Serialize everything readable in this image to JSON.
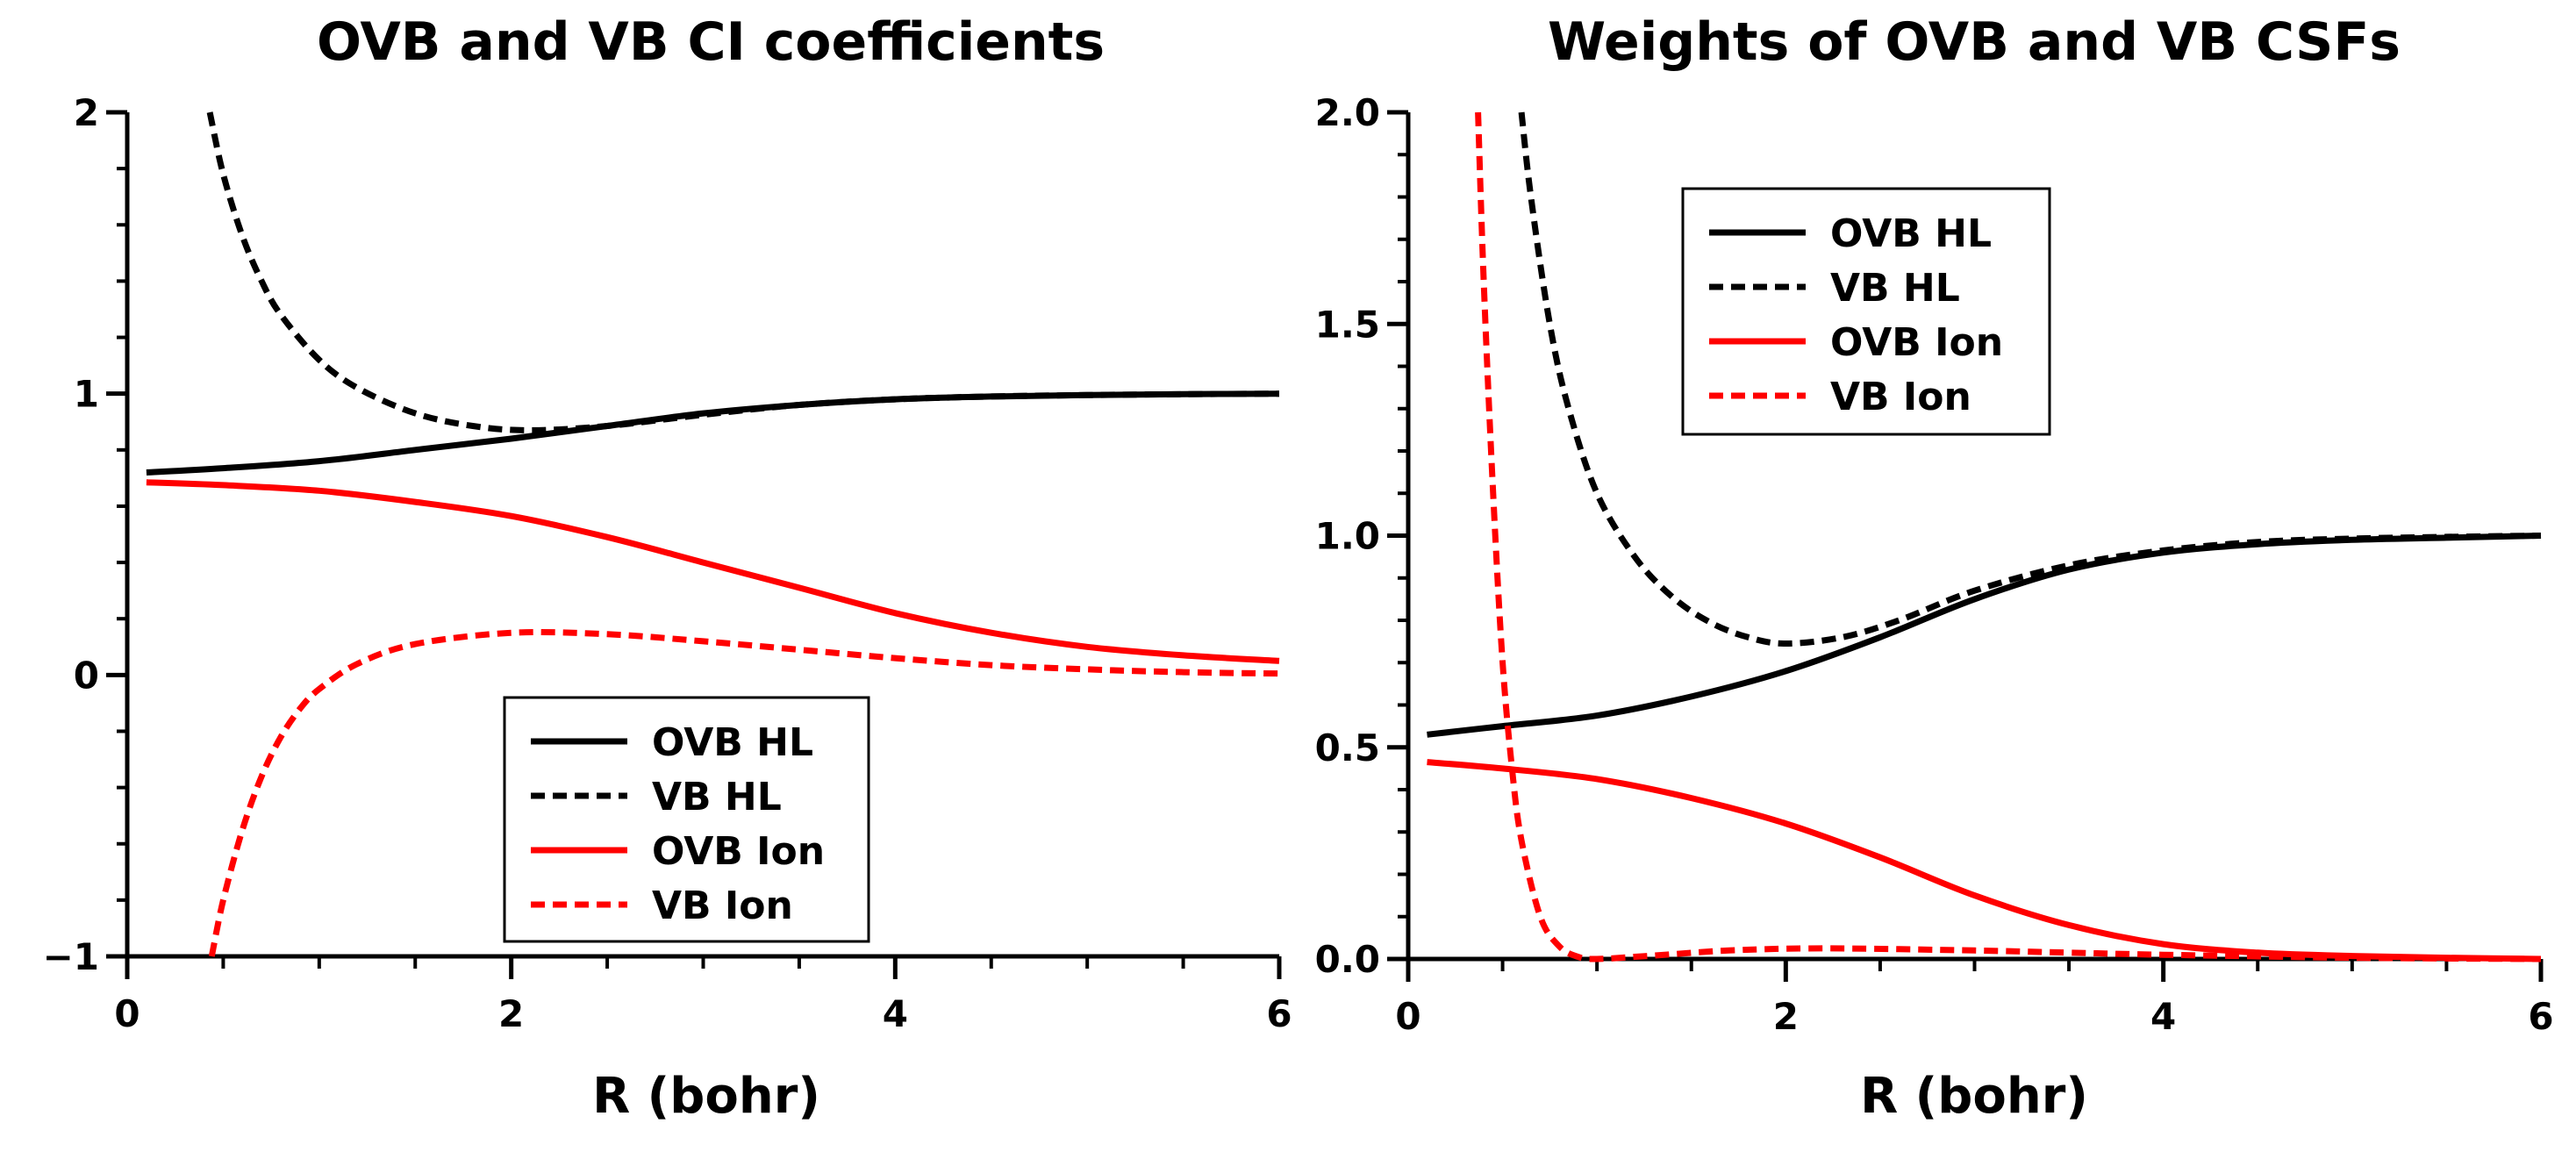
{
  "figure": {
    "background": "#ffffff"
  },
  "chart_data": [
    {
      "type": "line",
      "title": "OVB and VB CI coefficients",
      "xlabel": "R (bohr)",
      "ylabel": "",
      "xlim": [
        0,
        6
      ],
      "ylim": [
        -1,
        2
      ],
      "xticks": [
        0,
        2,
        4,
        6
      ],
      "xtick_labels": [
        "0",
        "2",
        "4",
        "6"
      ],
      "yticks": [
        -1,
        0,
        1,
        2
      ],
      "ytick_labels": [
        "−1",
        "0",
        "1",
        "2"
      ],
      "legend_position": "bottom-center",
      "series": [
        {
          "name": "OVB HL",
          "color": "#000000",
          "dash": "solid",
          "x": [
            0.1,
            0.5,
            1.0,
            1.5,
            2.0,
            2.5,
            3.0,
            3.5,
            4.0,
            4.5,
            5.0,
            5.5,
            6.0
          ],
          "y": [
            0.72,
            0.735,
            0.76,
            0.8,
            0.84,
            0.885,
            0.93,
            0.96,
            0.98,
            0.99,
            0.995,
            0.998,
            1.0
          ]
        },
        {
          "name": "VB HL",
          "color": "#000000",
          "dash": "dashed",
          "x": [
            0.43,
            0.5,
            0.6,
            0.7,
            0.8,
            1.0,
            1.2,
            1.5,
            1.8,
            2.1,
            2.5,
            3.0,
            3.5,
            4.0,
            4.5,
            5.0,
            5.5,
            6.0
          ],
          "y": [
            2.0,
            1.78,
            1.56,
            1.4,
            1.28,
            1.12,
            1.02,
            0.93,
            0.885,
            0.87,
            0.885,
            0.925,
            0.96,
            0.98,
            0.99,
            0.995,
            0.998,
            1.0
          ]
        },
        {
          "name": "OVB Ion",
          "color": "#ff0000",
          "dash": "solid",
          "x": [
            0.1,
            0.5,
            1.0,
            1.5,
            2.0,
            2.5,
            3.0,
            3.5,
            4.0,
            4.5,
            5.0,
            5.5,
            6.0
          ],
          "y": [
            0.685,
            0.675,
            0.655,
            0.615,
            0.565,
            0.49,
            0.4,
            0.31,
            0.22,
            0.15,
            0.1,
            0.07,
            0.05
          ]
        },
        {
          "name": "VB Ion",
          "color": "#ff0000",
          "dash": "dashed",
          "x": [
            0.44,
            0.5,
            0.6,
            0.7,
            0.8,
            0.9,
            1.0,
            1.2,
            1.5,
            2.0,
            2.5,
            3.0,
            3.5,
            4.0,
            4.5,
            5.0,
            5.5,
            6.0
          ],
          "y": [
            -1.0,
            -0.8,
            -0.55,
            -0.36,
            -0.22,
            -0.12,
            -0.05,
            0.04,
            0.11,
            0.15,
            0.145,
            0.12,
            0.09,
            0.06,
            0.035,
            0.02,
            0.01,
            0.005
          ]
        }
      ]
    },
    {
      "type": "line",
      "title": "Weights of OVB and VB CSFs",
      "xlabel": "R (bohr)",
      "ylabel": "",
      "xlim": [
        0,
        6
      ],
      "ylim": [
        0,
        2
      ],
      "xticks": [
        0,
        2,
        4,
        6
      ],
      "xtick_labels": [
        "0",
        "2",
        "4",
        "6"
      ],
      "yticks": [
        0,
        0.5,
        1.0,
        1.5,
        2.0
      ],
      "ytick_labels": [
        "0.0",
        "0.5",
        "1.0",
        "1.5",
        "2.0"
      ],
      "legend_position": "top-left",
      "series": [
        {
          "name": "OVB HL",
          "color": "#000000",
          "dash": "solid",
          "x": [
            0.1,
            0.5,
            1.0,
            1.5,
            2.0,
            2.5,
            3.0,
            3.5,
            4.0,
            4.5,
            5.0,
            5.5,
            6.0
          ],
          "y": [
            0.53,
            0.55,
            0.575,
            0.62,
            0.68,
            0.76,
            0.85,
            0.92,
            0.96,
            0.98,
            0.99,
            0.995,
            1.0
          ]
        },
        {
          "name": "VB HL",
          "color": "#000000",
          "dash": "dashed",
          "x": [
            0.6,
            0.65,
            0.75,
            0.85,
            1.0,
            1.2,
            1.4,
            1.6,
            1.8,
            2.0,
            2.3,
            2.6,
            3.0,
            3.5,
            4.0,
            4.5,
            5.0,
            5.5,
            6.0
          ],
          "y": [
            2.0,
            1.8,
            1.5,
            1.3,
            1.1,
            0.95,
            0.855,
            0.795,
            0.76,
            0.745,
            0.76,
            0.8,
            0.87,
            0.93,
            0.965,
            0.985,
            0.993,
            0.997,
            1.0
          ]
        },
        {
          "name": "OVB Ion",
          "color": "#ff0000",
          "dash": "solid",
          "x": [
            0.1,
            0.5,
            1.0,
            1.5,
            2.0,
            2.5,
            3.0,
            3.5,
            4.0,
            4.5,
            5.0,
            5.5,
            6.0
          ],
          "y": [
            0.465,
            0.45,
            0.425,
            0.38,
            0.32,
            0.24,
            0.15,
            0.08,
            0.035,
            0.015,
            0.007,
            0.003,
            0.0
          ]
        },
        {
          "name": "VB Ion",
          "color": "#ff0000",
          "dash": "dashed",
          "x": [
            0.37,
            0.4,
            0.45,
            0.5,
            0.55,
            0.6,
            0.7,
            0.8,
            0.9,
            1.0,
            1.3,
            1.7,
            2.2,
            3.0,
            3.5,
            4.0,
            5.0,
            6.0
          ],
          "y": [
            2.0,
            1.6,
            1.1,
            0.7,
            0.45,
            0.28,
            0.1,
            0.03,
            0.005,
            0.0,
            0.008,
            0.02,
            0.025,
            0.02,
            0.015,
            0.01,
            0.003,
            0.0
          ]
        }
      ]
    }
  ]
}
